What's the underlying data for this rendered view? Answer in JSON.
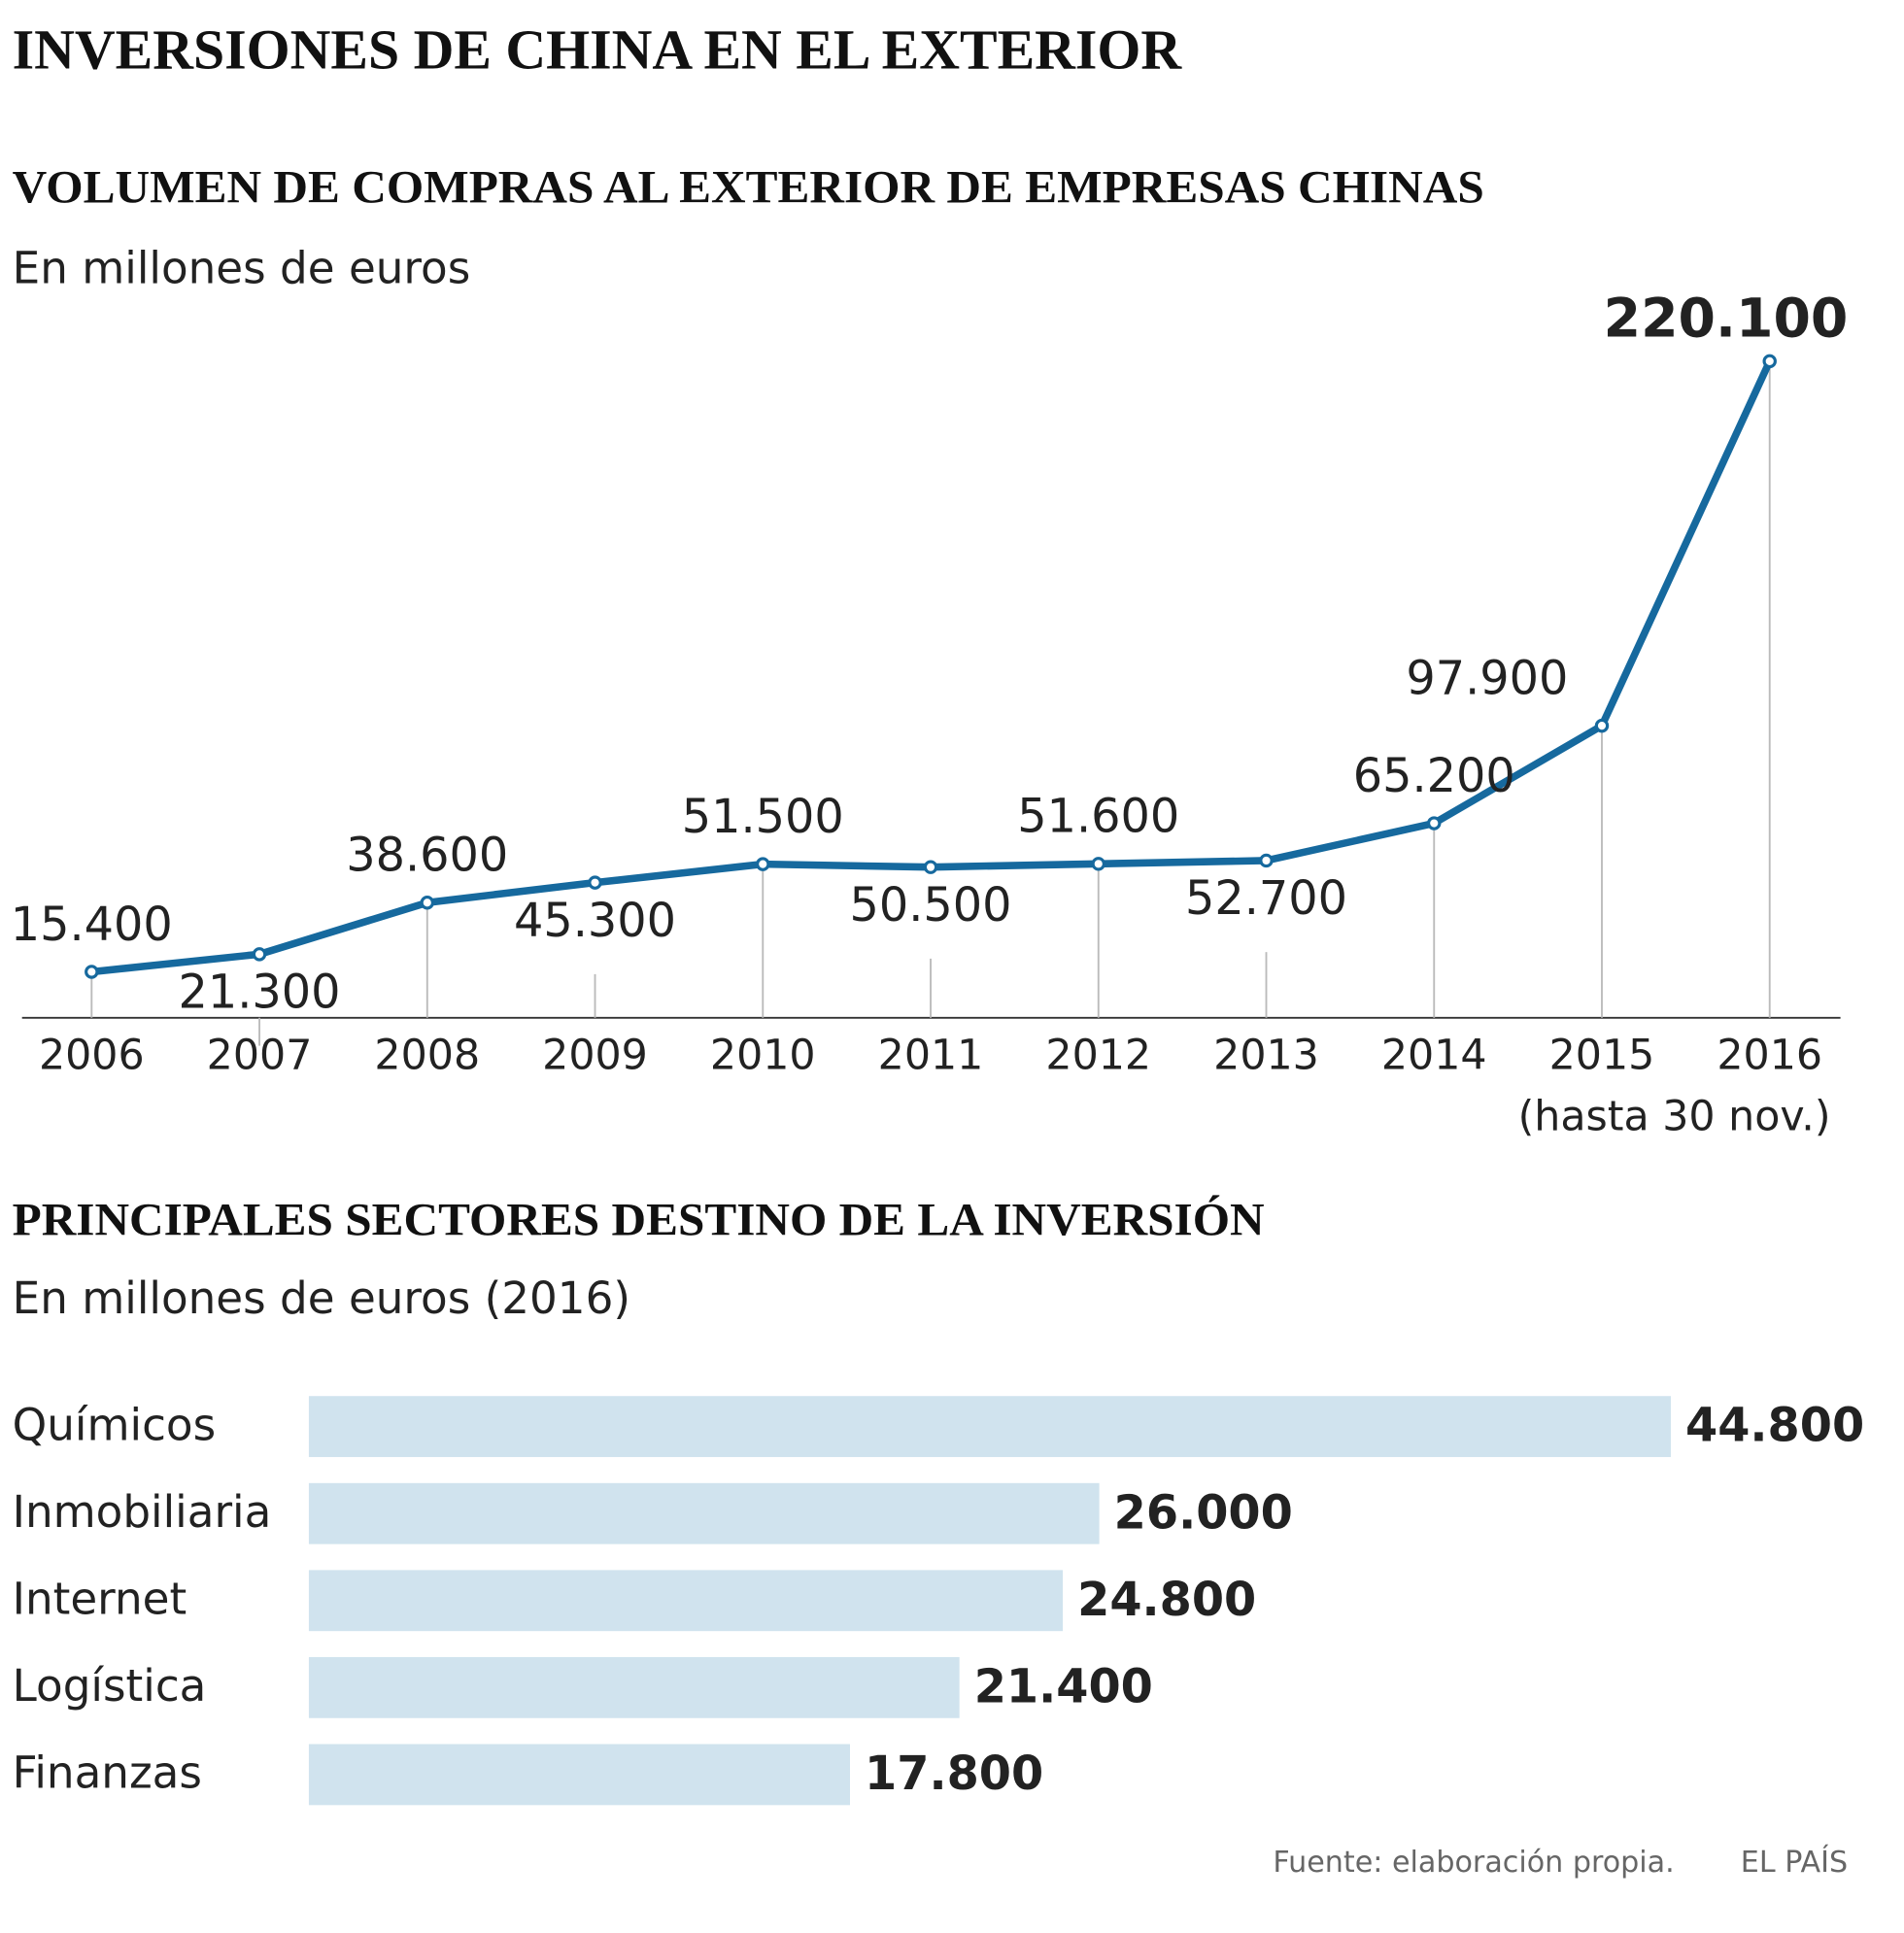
{
  "title": "INVERSIONES DE CHINA EN EL EXTERIOR",
  "chart_data": [
    {
      "type": "line",
      "title": "VOLUMEN DE COMPRAS AL EXTERIOR DE EMPRESAS CHINAS",
      "subtitle": "En millones de euros",
      "categories": [
        "2006",
        "2007",
        "2008",
        "2009",
        "2010",
        "2011",
        "2012",
        "2013",
        "2014",
        "2015",
        "2016"
      ],
      "x_note": "(hasta 30 nov.)",
      "values": [
        15400,
        21300,
        38600,
        45300,
        51500,
        50500,
        51600,
        52700,
        65200,
        97900,
        220100
      ],
      "value_labels": [
        "15.400",
        "21.300",
        "38.600",
        "45.300",
        "51.500",
        "50.500",
        "51.600",
        "52.700",
        "65.200",
        "97.900",
        "220.100"
      ],
      "color": "#16699e",
      "ylim": [
        0,
        220100
      ]
    },
    {
      "type": "hbar",
      "title": "PRINCIPALES SECTORES DESTINO DE LA INVERSIÓN",
      "subtitle": "En millones de euros (2016)",
      "categories": [
        "Químicos",
        "Inmobiliaria",
        "Internet",
        "Logística",
        "Finanzas"
      ],
      "values": [
        44800,
        26000,
        24800,
        21400,
        17800
      ],
      "value_labels": [
        "44.800",
        "26.000",
        "24.800",
        "21.400",
        "17.800"
      ],
      "color": "#d0e3ee",
      "xlim": [
        0,
        44800
      ]
    }
  ],
  "source": "Fuente: elaboración propia.",
  "credit": "EL PAÍS"
}
